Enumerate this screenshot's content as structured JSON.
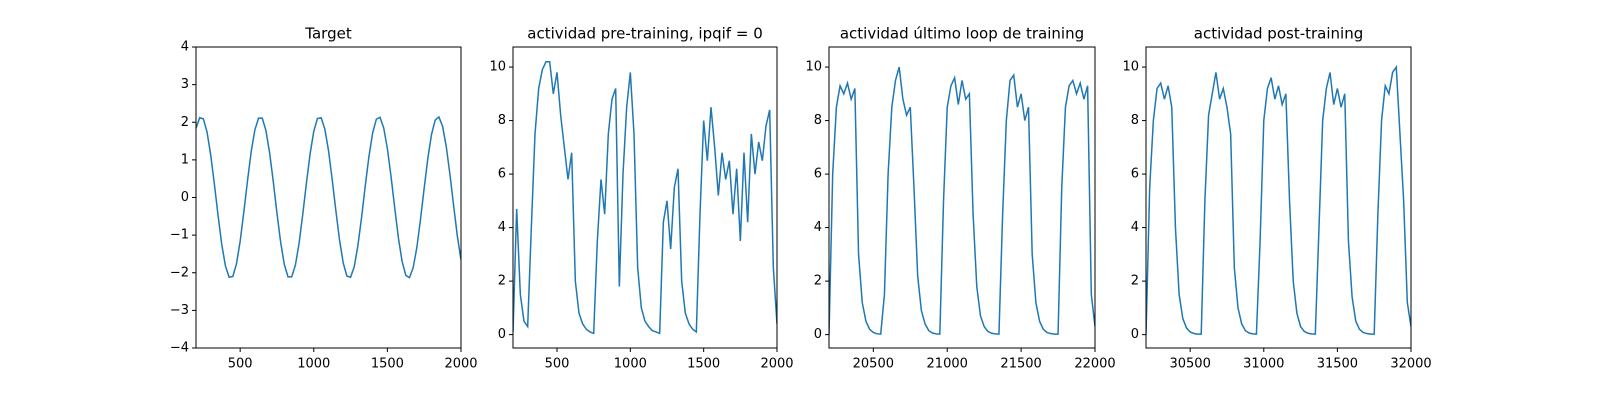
{
  "chart_data": [
    {
      "type": "line",
      "title": "Target",
      "color": "#1f77b4",
      "x": [
        200,
        225,
        250,
        275,
        300,
        325,
        350,
        375,
        400,
        425,
        450,
        475,
        500,
        525,
        550,
        575,
        600,
        625,
        650,
        675,
        700,
        725,
        750,
        775,
        800,
        825,
        850,
        875,
        900,
        925,
        950,
        975,
        1000,
        1025,
        1050,
        1075,
        1100,
        1125,
        1150,
        1175,
        1200,
        1225,
        1250,
        1275,
        1300,
        1325,
        1350,
        1375,
        1400,
        1425,
        1450,
        1475,
        1500,
        1525,
        1550,
        1575,
        1600,
        1625,
        1650,
        1675,
        1700,
        1725,
        1750,
        1775,
        1800,
        1825,
        1850,
        1875,
        1900,
        1925,
        1950,
        1975,
        2000
      ],
      "values": [
        1.84,
        2.12,
        2.09,
        1.74,
        1.13,
        0.35,
        -0.48,
        -1.25,
        -1.82,
        -2.12,
        -2.1,
        -1.76,
        -1.16,
        -0.38,
        0.45,
        1.22,
        1.8,
        2.11,
        2.11,
        1.78,
        1.19,
        0.42,
        -0.42,
        -1.19,
        -1.78,
        -2.11,
        -2.11,
        -1.8,
        -1.22,
        -0.45,
        0.38,
        1.16,
        1.76,
        2.1,
        2.12,
        1.82,
        1.25,
        0.48,
        -0.35,
        -1.13,
        -1.74,
        -2.09,
        -2.12,
        -1.84,
        -1.27,
        -0.52,
        0.32,
        1.1,
        1.72,
        2.08,
        2.13,
        1.85,
        1.3,
        0.55,
        -0.28,
        -1.08,
        -1.7,
        -2.07,
        -2.13,
        -1.87,
        -1.33,
        -0.58,
        0.25,
        1.05,
        1.68,
        2.06,
        2.14,
        1.89,
        1.35,
        0.61,
        -0.22,
        -1.02,
        -1.66
      ],
      "xlim": [
        200,
        2000
      ],
      "xticks": [
        500,
        1000,
        1500,
        2000
      ],
      "ylim": [
        -4,
        4
      ],
      "yticks": [
        {
          "value": -4,
          "label": "−4"
        },
        {
          "value": -3,
          "label": "−3"
        },
        {
          "value": -2,
          "label": "−2"
        },
        {
          "value": -1,
          "label": "−1"
        },
        0,
        1,
        2,
        3,
        4
      ]
    },
    {
      "type": "line",
      "title": "actividad pre-training, ipqif = 0",
      "color": "#1f77b4",
      "x": [
        200,
        225,
        250,
        275,
        300,
        325,
        350,
        375,
        400,
        425,
        450,
        475,
        500,
        525,
        550,
        575,
        600,
        625,
        650,
        675,
        700,
        725,
        750,
        775,
        800,
        825,
        850,
        875,
        900,
        925,
        950,
        975,
        1000,
        1025,
        1050,
        1075,
        1100,
        1125,
        1150,
        1175,
        1200,
        1225,
        1250,
        1275,
        1300,
        1325,
        1350,
        1375,
        1400,
        1425,
        1450,
        1475,
        1500,
        1525,
        1550,
        1575,
        1600,
        1625,
        1650,
        1675,
        1700,
        1725,
        1750,
        1775,
        1800,
        1825,
        1850,
        1875,
        1900,
        1925,
        1950,
        1975,
        2000
      ],
      "values": [
        0.1,
        4.7,
        1.5,
        0.5,
        0.3,
        4.0,
        7.5,
        9.2,
        9.9,
        10.2,
        10.2,
        9.0,
        9.8,
        8.2,
        7.0,
        5.8,
        6.8,
        2.0,
        0.8,
        0.4,
        0.2,
        0.1,
        0.05,
        3.5,
        5.8,
        4.5,
        7.5,
        8.8,
        9.2,
        1.8,
        6.0,
        8.5,
        9.8,
        7.5,
        2.5,
        1.0,
        0.5,
        0.3,
        0.15,
        0.1,
        0.05,
        4.2,
        5.0,
        3.2,
        5.5,
        6.2,
        2.0,
        0.8,
        0.4,
        0.2,
        0.1,
        4.5,
        8.0,
        6.5,
        8.5,
        7.0,
        5.2,
        6.8,
        5.8,
        6.5,
        4.5,
        6.2,
        3.5,
        6.8,
        4.2,
        7.5,
        6.0,
        7.2,
        6.5,
        7.8,
        8.4,
        2.5,
        0.4
      ],
      "xlim": [
        200,
        2000
      ],
      "xticks": [
        500,
        1000,
        1500,
        2000
      ],
      "ylim": [
        -0.5,
        10.75
      ],
      "yticks": [
        0,
        2,
        4,
        6,
        8,
        10
      ]
    },
    {
      "type": "line",
      "title": "actividad último loop de training",
      "color": "#1f77b4",
      "x": [
        20200,
        20225,
        20250,
        20275,
        20300,
        20325,
        20350,
        20375,
        20400,
        20425,
        20450,
        20475,
        20500,
        20525,
        20550,
        20575,
        20600,
        20625,
        20650,
        20675,
        20700,
        20725,
        20750,
        20775,
        20800,
        20825,
        20850,
        20875,
        20900,
        20925,
        20950,
        20975,
        21000,
        21025,
        21050,
        21075,
        21100,
        21125,
        21150,
        21175,
        21200,
        21225,
        21250,
        21275,
        21300,
        21325,
        21350,
        21375,
        21400,
        21425,
        21450,
        21475,
        21500,
        21525,
        21550,
        21575,
        21600,
        21625,
        21650,
        21675,
        21700,
        21725,
        21750,
        21775,
        21800,
        21825,
        21850,
        21875,
        21900,
        21925,
        21950,
        21975,
        22000
      ],
      "values": [
        0.0,
        6.0,
        8.5,
        9.3,
        9.0,
        9.4,
        8.8,
        9.2,
        3.0,
        1.2,
        0.5,
        0.2,
        0.08,
        0.03,
        0.02,
        1.5,
        6.0,
        8.5,
        9.5,
        10.0,
        8.8,
        8.2,
        8.5,
        5.5,
        2.2,
        0.9,
        0.4,
        0.15,
        0.06,
        0.03,
        0.02,
        5.0,
        8.5,
        9.3,
        9.6,
        8.6,
        9.5,
        8.8,
        9.0,
        4.5,
        1.8,
        0.7,
        0.3,
        0.12,
        0.05,
        0.03,
        0.02,
        4.5,
        8.0,
        9.5,
        9.7,
        8.5,
        9.0,
        8.0,
        8.5,
        3.0,
        1.2,
        0.5,
        0.2,
        0.08,
        0.04,
        0.02,
        0.02,
        5.5,
        8.5,
        9.3,
        9.5,
        9.0,
        9.4,
        8.8,
        9.3,
        1.5,
        0.3
      ],
      "xlim": [
        20200,
        22000
      ],
      "xticks": [
        20500,
        21000,
        21500,
        22000
      ],
      "ylim": [
        -0.5,
        10.75
      ],
      "yticks": [
        0,
        2,
        4,
        6,
        8,
        10
      ]
    },
    {
      "type": "line",
      "title": "actividad post-training",
      "color": "#1f77b4",
      "x": [
        30200,
        30225,
        30250,
        30275,
        30300,
        30325,
        30350,
        30375,
        30400,
        30425,
        30450,
        30475,
        30500,
        30525,
        30550,
        30575,
        30600,
        30625,
        30650,
        30675,
        30700,
        30725,
        30750,
        30775,
        30800,
        30825,
        30850,
        30875,
        30900,
        30925,
        30950,
        30975,
        31000,
        31025,
        31050,
        31075,
        31100,
        31125,
        31150,
        31175,
        31200,
        31225,
        31250,
        31275,
        31300,
        31325,
        31350,
        31375,
        31400,
        31425,
        31450,
        31475,
        31500,
        31525,
        31550,
        31575,
        31600,
        31625,
        31650,
        31675,
        31700,
        31725,
        31750,
        31775,
        31800,
        31825,
        31850,
        31875,
        31900,
        31925,
        31950,
        31975,
        32000
      ],
      "values": [
        0.0,
        5.5,
        8.0,
        9.2,
        9.4,
        8.8,
        9.3,
        8.5,
        4.0,
        1.5,
        0.6,
        0.25,
        0.1,
        0.04,
        0.02,
        0.02,
        5.0,
        8.2,
        9.0,
        9.8,
        8.8,
        9.2,
        8.5,
        7.5,
        2.5,
        1.0,
        0.4,
        0.15,
        0.06,
        0.03,
        0.02,
        3.5,
        8.0,
        9.2,
        9.6,
        8.8,
        9.3,
        8.6,
        9.0,
        5.0,
        2.0,
        0.8,
        0.3,
        0.12,
        0.05,
        0.03,
        0.02,
        4.0,
        8.0,
        9.2,
        9.8,
        8.6,
        9.2,
        8.5,
        9.0,
        3.5,
        1.4,
        0.5,
        0.2,
        0.08,
        0.04,
        0.02,
        0.02,
        4.5,
        8.0,
        9.3,
        9.0,
        9.8,
        10.0,
        7.5,
        5.0,
        1.2,
        0.3
      ],
      "xlim": [
        30200,
        32000
      ],
      "xticks": [
        30500,
        31000,
        31500,
        32000
      ],
      "ylim": [
        -0.5,
        10.75
      ],
      "yticks": [
        0,
        2,
        4,
        6,
        8,
        10
      ]
    }
  ]
}
